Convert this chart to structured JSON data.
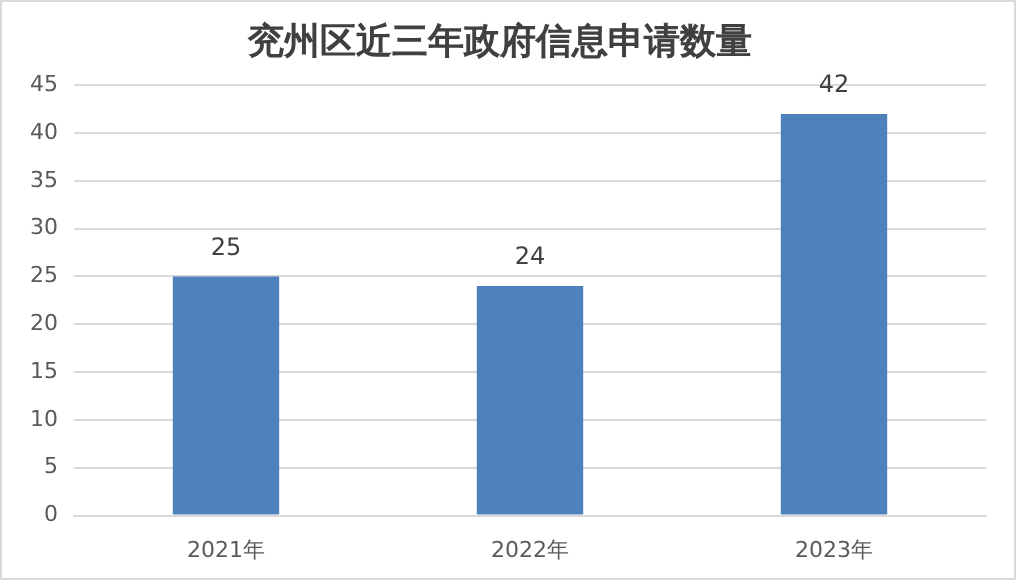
{
  "chart_data": {
    "type": "bar",
    "title": "兖州区近三年政府信息申请数量",
    "categories": [
      "2021年",
      "2022年",
      "2023年"
    ],
    "values": [
      25,
      24,
      42
    ],
    "color": "#4f81bd",
    "ylim": [
      0,
      45
    ],
    "yticks": [
      0,
      5,
      10,
      15,
      20,
      25,
      30,
      35,
      40,
      45
    ],
    "grid": "y",
    "data_labels": true,
    "legend": false
  }
}
